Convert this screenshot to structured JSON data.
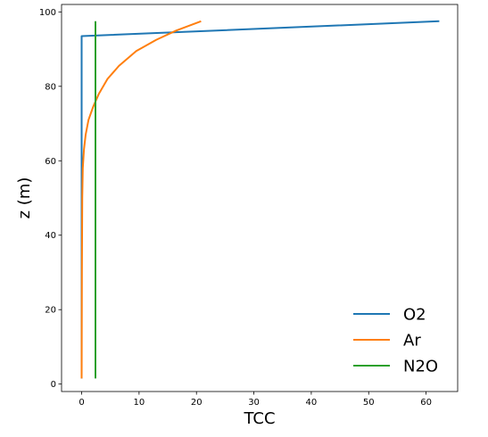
{
  "chart_data": {
    "type": "line",
    "xlabel": "TCC",
    "ylabel": "z (m)",
    "xlim": [
      -3.5,
      65.5
    ],
    "ylim": [
      -2.0,
      102.0
    ],
    "xticks": [
      0,
      10,
      20,
      30,
      40,
      50,
      60
    ],
    "yticks": [
      0,
      20,
      40,
      60,
      80,
      100
    ],
    "grid": false,
    "legend_position": "lower right",
    "series": [
      {
        "name": "O2",
        "color": "#1f77b4",
        "x": [
          0.0,
          0.0,
          0.0,
          62.3
        ],
        "y": [
          1.5,
          60.0,
          93.5,
          97.5
        ]
      },
      {
        "name": "Ar",
        "color": "#ff7f0e",
        "x": [
          0.0,
          0.05,
          0.1,
          0.2,
          0.4,
          0.7,
          1.2,
          2.0,
          3.0,
          4.5,
          6.5,
          9.5,
          13.0,
          16.5,
          20.8
        ],
        "y": [
          1.5,
          30.0,
          50.0,
          58.0,
          63.0,
          67.0,
          71.0,
          74.5,
          78.0,
          82.0,
          85.5,
          89.5,
          92.5,
          95.0,
          97.5
        ]
      },
      {
        "name": "N2O",
        "color": "#2ca02c",
        "x": [
          2.4,
          2.4
        ],
        "y": [
          1.5,
          97.5
        ]
      }
    ]
  }
}
